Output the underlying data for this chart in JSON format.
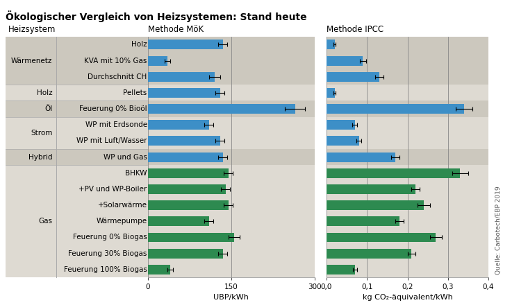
{
  "title": "Ökologischer Vergleich von Heizsystemen: Stand heute",
  "categories": [
    "Holz",
    "KVA mit 10% Gas",
    "Durchschnitt CH",
    "Pellets",
    "Feuerung 0% Bioöl",
    "WP mit Erdsonde",
    "WP mit Luft/Wasser",
    "WP und Gas",
    "BHKW",
    "+PV und WP-Boiler",
    "+Solarwärme",
    "Wärmepumpe",
    "Feuerung 0% Biogas",
    "Feuerung 30% Biogas",
    "Feuerung 100% Biogas"
  ],
  "group_category": [
    "blue",
    "blue",
    "blue",
    "blue",
    "blue",
    "blue",
    "blue",
    "blue",
    "green",
    "green",
    "green",
    "green",
    "green",
    "green",
    "green"
  ],
  "group_defs": [
    {
      "label": "Wärmenetz",
      "rows": [
        0,
        1,
        2
      ],
      "shade": true
    },
    {
      "label": "Holz",
      "rows": [
        3
      ],
      "shade": false
    },
    {
      "label": "Öl",
      "rows": [
        4
      ],
      "shade": true
    },
    {
      "label": "Strom",
      "rows": [
        5,
        6
      ],
      "shade": false
    },
    {
      "label": "Hybrid",
      "rows": [
        7
      ],
      "shade": true
    },
    {
      "label": "Gas",
      "rows": [
        8,
        9,
        10,
        11,
        12,
        13,
        14
      ],
      "shade": false
    }
  ],
  "mok_values": [
    135,
    35,
    120,
    130,
    265,
    110,
    130,
    135,
    145,
    140,
    145,
    110,
    155,
    135,
    40
  ],
  "mok_errors": [
    8,
    5,
    10,
    8,
    18,
    8,
    8,
    8,
    8,
    8,
    8,
    8,
    10,
    8,
    5
  ],
  "ipcc_values": [
    0.02,
    0.09,
    0.13,
    0.02,
    0.34,
    0.07,
    0.08,
    0.17,
    0.33,
    0.22,
    0.24,
    0.18,
    0.27,
    0.21,
    0.07
  ],
  "ipcc_errors": [
    0.003,
    0.007,
    0.01,
    0.003,
    0.02,
    0.006,
    0.006,
    0.01,
    0.02,
    0.01,
    0.015,
    0.01,
    0.015,
    0.01,
    0.005
  ],
  "blue_color": "#3d8fc7",
  "green_color": "#2d8a50",
  "shade_color_dark": "#ccc8be",
  "shade_color_light": "#dedad2",
  "bg_white": "#ffffff",
  "methode_mok_label": "Methode MöK",
  "methode_ipcc_label": "Methode IPCC",
  "heizsystem_label": "Heizsystem",
  "xlabel_mok": "UBP/kWh",
  "xlabel_ipcc": "kg CO₂-äquivalent/kWh",
  "source": "Quelle: Carbotech/EBP 2019",
  "mok_xlim": [
    0,
    300
  ],
  "mok_xticks": [
    0,
    150,
    300
  ],
  "ipcc_xlim": [
    0,
    0.4
  ],
  "ipcc_xticks": [
    0,
    0.1,
    0.2,
    0.3,
    0.4
  ]
}
